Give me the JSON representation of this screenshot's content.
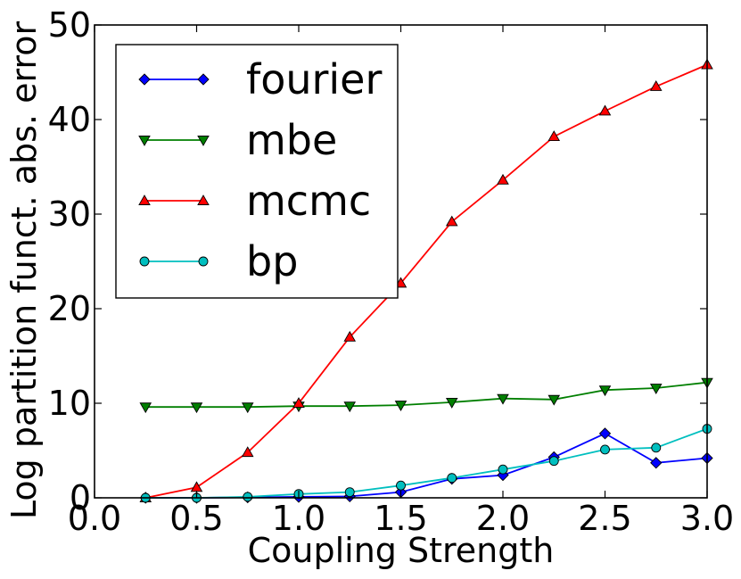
{
  "chart_data": {
    "type": "line",
    "title": "",
    "xlabel": "Coupling Strength",
    "ylabel": "Log partition funct. abs. error",
    "xlim": [
      0.0,
      3.0
    ],
    "ylim": [
      0,
      50
    ],
    "xticks": [
      "0.0",
      "0.5",
      "1.0",
      "1.5",
      "2.0",
      "2.5",
      "3.0"
    ],
    "yticks": [
      "0",
      "10",
      "20",
      "30",
      "40",
      "50"
    ],
    "grid": false,
    "legend_position": "upper-left",
    "series": [
      {
        "name": "fourier",
        "color": "#0000ff",
        "marker": "diamond",
        "x": [
          0.25,
          0.5,
          0.75,
          1.0,
          1.25,
          1.5,
          1.75,
          2.0,
          2.25,
          2.5,
          2.75,
          3.0
        ],
        "y": [
          0.0,
          0.0,
          0.05,
          0.1,
          0.15,
          0.6,
          2.0,
          2.4,
          4.3,
          6.8,
          3.7,
          4.2
        ]
      },
      {
        "name": "mbe",
        "color": "#007f00",
        "marker": "triangle-down",
        "x": [
          0.25,
          0.5,
          0.75,
          1.0,
          1.25,
          1.5,
          1.75,
          2.0,
          2.25,
          2.5,
          2.75,
          3.0
        ],
        "y": [
          9.6,
          9.6,
          9.6,
          9.7,
          9.7,
          9.8,
          10.1,
          10.5,
          10.4,
          11.4,
          11.6,
          12.2
        ]
      },
      {
        "name": "mcmc",
        "color": "#ff0000",
        "marker": "triangle-up",
        "x": [
          0.25,
          0.5,
          0.75,
          1.0,
          1.25,
          1.5,
          1.75,
          2.0,
          2.25,
          2.5,
          2.75,
          3.0
        ],
        "y": [
          0.0,
          1.1,
          4.8,
          10.0,
          17.0,
          22.7,
          29.2,
          33.6,
          38.2,
          40.9,
          43.5,
          45.8
        ]
      },
      {
        "name": "bp",
        "color": "#00bfbf",
        "marker": "circle",
        "x": [
          0.25,
          0.5,
          0.75,
          1.0,
          1.25,
          1.5,
          1.75,
          2.0,
          2.25,
          2.5,
          2.75,
          3.0
        ],
        "y": [
          0.0,
          0.0,
          0.1,
          0.4,
          0.6,
          1.3,
          2.1,
          3.0,
          3.9,
          5.1,
          5.3,
          7.3
        ]
      }
    ]
  }
}
